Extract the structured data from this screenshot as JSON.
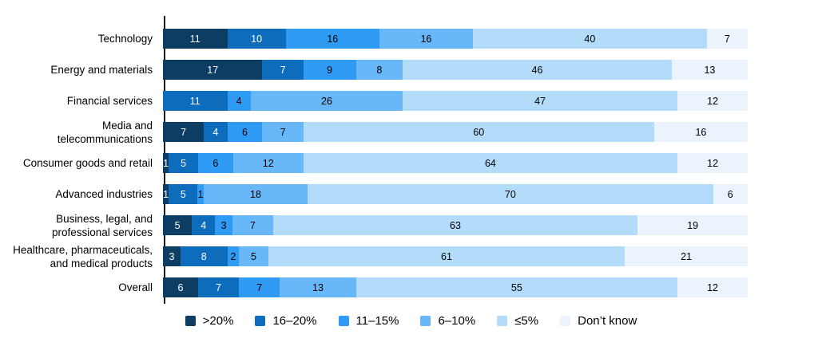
{
  "chart_data": {
    "type": "bar",
    "orientation": "horizontal",
    "stacked": true,
    "unit": "%",
    "title": "",
    "xlabel": "",
    "ylabel": "",
    "grid": false,
    "legend_position": "bottom",
    "axis_line_color": "#1a1a1a",
    "categories": [
      "Technology",
      "Energy and materials",
      "Financial services",
      "Media and\ntelecommunications",
      "Consumer goods and retail",
      "Advanced industries",
      "Business, legal, and\nprofessional services",
      "Healthcare, pharmaceuticals,\nand medical products",
      "Overall"
    ],
    "series": [
      {
        "name": ">20%",
        "color": "#0e3d64",
        "text_color": "#ffffff",
        "values": [
          11,
          17,
          0,
          7,
          1,
          1,
          5,
          3,
          6
        ]
      },
      {
        "name": "16–20%",
        "color": "#0e6cbd",
        "text_color": "#ffffff",
        "values": [
          10,
          7,
          11,
          4,
          5,
          5,
          4,
          8,
          7
        ]
      },
      {
        "name": "11–15%",
        "color": "#2f9bf5",
        "text_color": "#000000",
        "values": [
          16,
          9,
          4,
          6,
          6,
          1,
          3,
          2,
          7
        ]
      },
      {
        "name": "6–10%",
        "color": "#68b7f8",
        "text_color": "#000000",
        "values": [
          16,
          8,
          26,
          7,
          12,
          18,
          7,
          5,
          13
        ]
      },
      {
        "name": "≤5%",
        "color": "#b3dbfa",
        "text_color": "#000000",
        "values": [
          40,
          46,
          47,
          60,
          64,
          70,
          63,
          61,
          55
        ]
      },
      {
        "name": "Don’t know",
        "color": "#ebf4fc",
        "text_color": "#000000",
        "values": [
          7,
          13,
          12,
          16,
          12,
          6,
          19,
          21,
          12
        ]
      }
    ]
  }
}
